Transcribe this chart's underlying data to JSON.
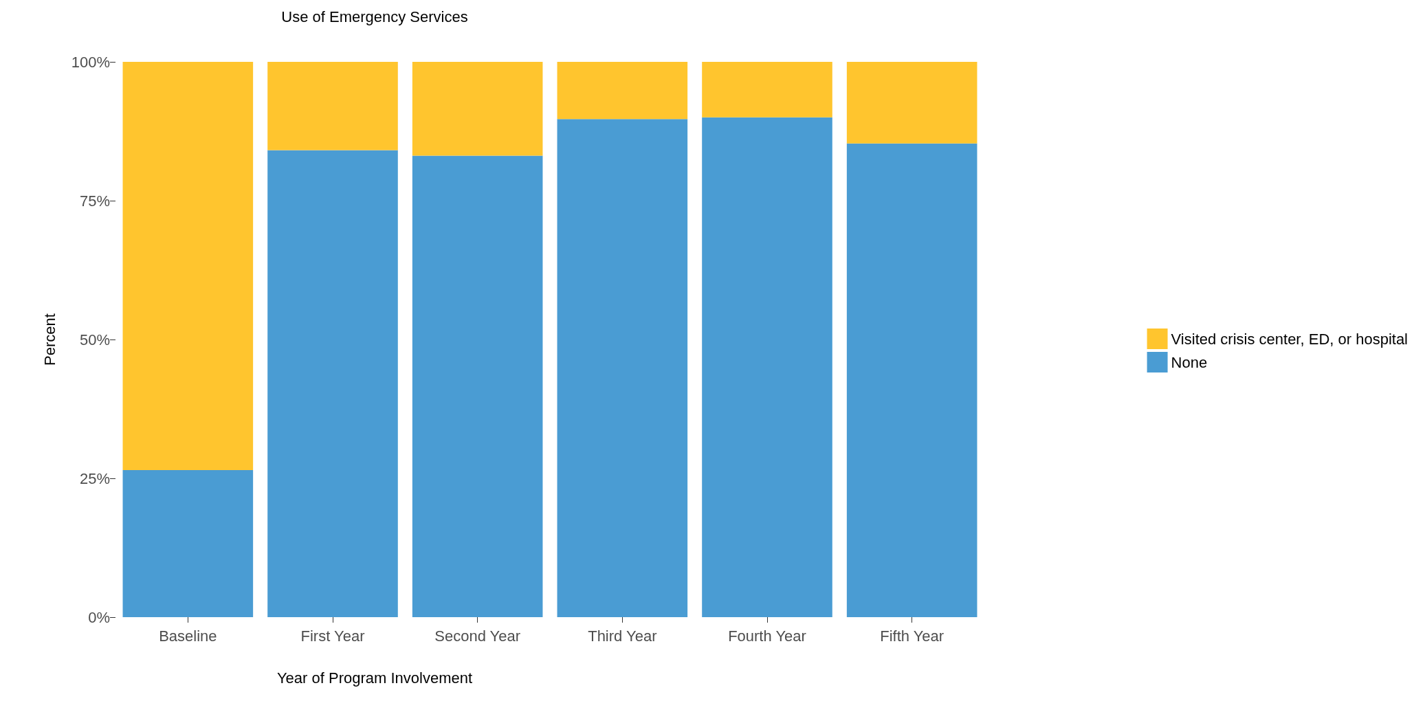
{
  "chart_data": {
    "type": "bar",
    "title": "Use of Emergency Services",
    "xlabel": "Year of Program Involvement",
    "ylabel": "Percent",
    "categories": [
      "Baseline",
      "First Year",
      "Second Year",
      "Third Year",
      "Fourth Year",
      "Fifth Year"
    ],
    "stacked": true,
    "series": [
      {
        "name": "None",
        "color": "#4a9cd3",
        "values": [
          26.5,
          84.1,
          83.1,
          89.7,
          90.0,
          85.3
        ]
      },
      {
        "name": "Visited crisis center, ED, or hospital",
        "color": "#ffc52e",
        "values": [
          73.5,
          15.9,
          16.9,
          10.3,
          10.0,
          14.7
        ]
      }
    ],
    "ylim": [
      0,
      100
    ],
    "yticks": [
      {
        "value": 0,
        "label": "0%"
      },
      {
        "value": 25,
        "label": "25%"
      },
      {
        "value": 50,
        "label": "50%"
      },
      {
        "value": 75,
        "label": "75%"
      },
      {
        "value": 100,
        "label": "100%"
      }
    ],
    "grid": false,
    "legend": "right"
  }
}
